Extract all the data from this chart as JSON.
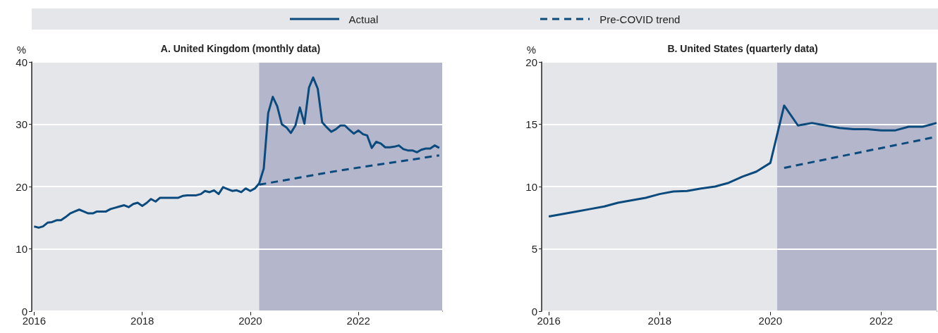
{
  "chart_data": [
    {
      "type": "line",
      "title": "A. United Kingdom (monthly data)",
      "ylabel": "%",
      "legend": "top",
      "grid": "y",
      "marker": "none",
      "xlim": [
        "2015-12-16",
        "2023-07-21"
      ],
      "xticks": [
        "2016",
        "2018",
        "2020",
        "2022"
      ],
      "ylim": [
        0,
        40
      ],
      "yticks": [
        0,
        10,
        20,
        30,
        40
      ],
      "bands": [
        {
          "axis": "x",
          "from": "2020-03",
          "to": "2023-07-21",
          "color": "#b4b7cc"
        }
      ],
      "x": [
        "2016-01",
        "2016-02",
        "2016-03",
        "2016-04",
        "2016-05",
        "2016-06",
        "2016-07",
        "2016-08",
        "2016-09",
        "2016-10",
        "2016-11",
        "2016-12",
        "2017-01",
        "2017-02",
        "2017-03",
        "2017-04",
        "2017-05",
        "2017-06",
        "2017-07",
        "2017-08",
        "2017-09",
        "2017-10",
        "2017-11",
        "2017-12",
        "2018-01",
        "2018-02",
        "2018-03",
        "2018-04",
        "2018-05",
        "2018-06",
        "2018-07",
        "2018-08",
        "2018-09",
        "2018-10",
        "2018-11",
        "2018-12",
        "2019-01",
        "2019-02",
        "2019-03",
        "2019-04",
        "2019-05",
        "2019-06",
        "2019-07",
        "2019-08",
        "2019-09",
        "2019-10",
        "2019-11",
        "2019-12",
        "2020-01",
        "2020-02",
        "2020-03",
        "2020-04",
        "2020-05",
        "2020-06",
        "2020-07",
        "2020-08",
        "2020-09",
        "2020-10",
        "2020-11",
        "2020-12",
        "2021-01",
        "2021-02",
        "2021-03",
        "2021-04",
        "2021-05",
        "2021-06",
        "2021-07",
        "2021-08",
        "2021-09",
        "2021-10",
        "2021-11",
        "2021-12",
        "2022-01",
        "2022-02",
        "2022-03",
        "2022-04",
        "2022-05",
        "2022-06",
        "2022-07",
        "2022-08",
        "2022-09",
        "2022-10",
        "2022-11",
        "2022-12",
        "2023-01",
        "2023-02",
        "2023-03",
        "2023-04",
        "2023-05",
        "2023-06",
        "2023-07"
      ],
      "series": [
        {
          "name": "Actual",
          "color": "#0b4a7d",
          "line_style": "solid",
          "values": [
            13.6,
            13.4,
            13.6,
            14.2,
            14.3,
            14.6,
            14.6,
            15.1,
            15.7,
            16.0,
            16.3,
            16.0,
            15.7,
            15.7,
            16.0,
            16.0,
            16.0,
            16.4,
            16.6,
            16.8,
            17.0,
            16.7,
            17.2,
            17.4,
            16.9,
            17.4,
            18.0,
            17.6,
            18.2,
            18.2,
            18.2,
            18.2,
            18.2,
            18.5,
            18.6,
            18.6,
            18.6,
            18.8,
            19.3,
            19.1,
            19.4,
            18.8,
            19.9,
            19.6,
            19.3,
            19.4,
            19.1,
            19.7,
            19.3,
            19.7,
            20.5,
            22.9,
            31.8,
            34.4,
            32.9,
            30.0,
            29.5,
            28.6,
            29.8,
            32.7,
            30.1,
            35.9,
            37.5,
            35.7,
            30.3,
            29.5,
            28.8,
            29.2,
            29.8,
            29.8,
            29.1,
            28.5,
            29.0,
            28.4,
            28.2,
            26.2,
            27.2,
            26.9,
            26.3,
            26.3,
            26.4,
            26.6,
            26.0,
            25.8,
            25.8,
            25.5,
            25.9,
            26.1,
            26.1,
            26.6,
            26.2
          ]
        },
        {
          "name": "Pre-COVID trend",
          "color": "#0b4a7d",
          "line_style": "dashed",
          "x": [
            "2020-03",
            "2021-09",
            "2023-07"
          ],
          "values": [
            20.3,
            22.6,
            25.0
          ]
        }
      ]
    },
    {
      "type": "line",
      "title": "B. United States (quarterly data)",
      "ylabel": "%",
      "grid": "y",
      "marker": "none",
      "xlim": [
        "2015-11-15",
        "2023-01-01"
      ],
      "xticks": [
        "2016",
        "2018",
        "2020",
        "2022"
      ],
      "ylim": [
        0,
        20
      ],
      "yticks": [
        0,
        5,
        10,
        15,
        20
      ],
      "bands": [
        {
          "axis": "x",
          "from": "2020-02-15",
          "to": "2023-01-01",
          "color": "#b4b7cc"
        }
      ],
      "x": [
        "2016-01",
        "2016-04",
        "2016-07",
        "2016-10",
        "2017-01",
        "2017-04",
        "2017-07",
        "2017-10",
        "2018-01",
        "2018-04",
        "2018-07",
        "2018-10",
        "2019-01",
        "2019-04",
        "2019-07",
        "2019-10",
        "2020-01",
        "2020-04",
        "2020-07",
        "2020-10",
        "2021-01",
        "2021-04",
        "2021-07",
        "2021-10",
        "2022-01",
        "2022-04",
        "2022-07",
        "2022-10",
        "2023-01"
      ],
      "series": [
        {
          "color": "#0b4a7d",
          "line_style": "solid",
          "values": [
            7.6,
            7.8,
            8.0,
            8.2,
            8.4,
            8.7,
            8.9,
            9.1,
            9.4,
            9.6,
            9.65,
            9.85,
            10.0,
            10.3,
            10.8,
            11.2,
            11.9,
            16.5,
            14.9,
            15.1,
            14.9,
            14.7,
            14.6,
            14.6,
            14.5,
            14.5,
            14.8,
            14.8,
            15.1
          ]
        },
        {
          "color": "#0b4a7d",
          "line_style": "dashed",
          "x": [
            "2020-04",
            "2023-01"
          ],
          "values": [
            11.5,
            14.0
          ]
        }
      ]
    }
  ]
}
